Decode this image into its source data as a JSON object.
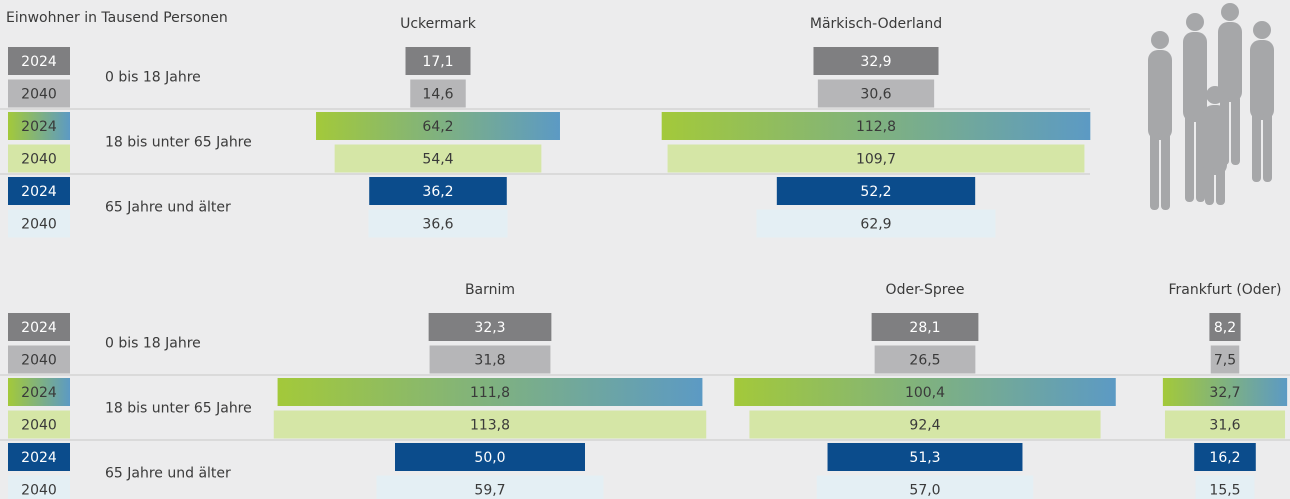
{
  "unit_label": "Einwohner in Tausend Personen",
  "years": [
    "2024",
    "2040"
  ],
  "age_groups": [
    {
      "name": "0 bis 18 Jahre",
      "colors": [
        "#7f7f81",
        "#b6b6b8"
      ],
      "label_colors": [
        "#ffffff",
        "#3a3a3a"
      ]
    },
    {
      "name": "18 bis unter 65 Jahre",
      "colors": [
        "#a3c93a",
        "#d5e6a6"
      ],
      "gradient_to": "#5c9ac4",
      "label_colors": [
        "#3a3a3a",
        "#3a3a3a"
      ]
    },
    {
      "name": "65 Jahre und älter",
      "colors": [
        "#0b4c8c",
        "#e4eff4"
      ],
      "label_colors": [
        "#ffffff",
        "#3a3a3a"
      ]
    }
  ],
  "chart_data": [
    {
      "type": "bar",
      "title": "Uckermark",
      "values": [
        [
          17.1,
          14.6
        ],
        [
          64.2,
          54.4
        ],
        [
          36.2,
          36.6
        ]
      ],
      "value_labels": [
        [
          "17,1",
          "14,6"
        ],
        [
          "64,2",
          "54,4"
        ],
        [
          "36,2",
          "36,6"
        ]
      ]
    },
    {
      "type": "bar",
      "title": "Märkisch-Oderland",
      "values": [
        [
          32.9,
          30.6
        ],
        [
          112.8,
          109.7
        ],
        [
          52.2,
          62.9
        ]
      ],
      "value_labels": [
        [
          "32,9",
          "30,6"
        ],
        [
          "112,8",
          "109,7"
        ],
        [
          "52,2",
          "62,9"
        ]
      ]
    },
    {
      "type": "bar",
      "title": "Barnim",
      "values": [
        [
          32.3,
          31.8
        ],
        [
          111.8,
          113.8
        ],
        [
          50.0,
          59.7
        ]
      ],
      "value_labels": [
        [
          "32,3",
          "31,8"
        ],
        [
          "111,8",
          "113,8"
        ],
        [
          "50,0",
          "59,7"
        ]
      ]
    },
    {
      "type": "bar",
      "title": "Oder-Spree",
      "values": [
        [
          28.1,
          26.5
        ],
        [
          100.4,
          92.4
        ],
        [
          51.3,
          57.0
        ]
      ],
      "value_labels": [
        [
          "28,1",
          "26,5"
        ],
        [
          "100,4",
          "92,4"
        ],
        [
          "51,3",
          "57,0"
        ]
      ]
    },
    {
      "type": "bar",
      "title": "Frankfurt (Oder)",
      "values": [
        [
          8.2,
          7.5
        ],
        [
          32.7,
          31.6
        ],
        [
          16.2,
          15.5
        ]
      ],
      "value_labels": [
        [
          "8,2",
          "7,5"
        ],
        [
          "32,7",
          "31,6"
        ],
        [
          "16,2",
          "15,5"
        ]
      ]
    }
  ]
}
